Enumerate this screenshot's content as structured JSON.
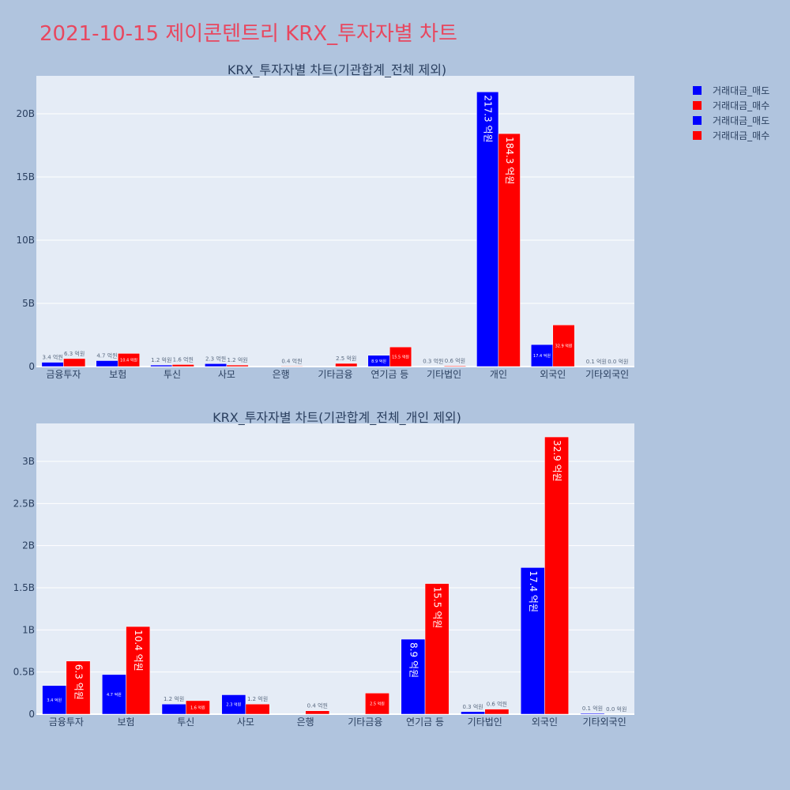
{
  "page": {
    "title": "2021-10-15 제이콘텐트리 KRX_투자자별 차트"
  },
  "colors": {
    "background": "#b0c4de",
    "plot_bg": "#e5ecf6",
    "sell": "#0000ff",
    "buy": "#ff0000",
    "title": "#e8475f",
    "text": "#2a3f5f"
  },
  "legend": [
    "거래대금_매도",
    "거래대금_매수",
    "거래대금_매도",
    "거래대금_매수"
  ],
  "chart_data": [
    {
      "type": "bar",
      "title": "KRX_투자자별 차트(기관합계_전체 제외)",
      "categories": [
        "금융투자",
        "보험",
        "투신",
        "사모",
        "은행",
        "기타금융",
        "연기금 등",
        "기타법인",
        "개인",
        "외국인",
        "기타외국인"
      ],
      "series": [
        {
          "name": "거래대금_매도",
          "values": [
            0.34,
            0.47,
            0.12,
            0.23,
            0,
            0,
            0.89,
            0.03,
            21.73,
            1.74,
            0.01
          ],
          "labels": [
            "3.4 억원",
            "4.7 억원",
            "1.2 억원",
            "2.3 억원",
            "",
            "",
            "8.9 억원",
            "0.3 억원",
            "217.3 억원",
            "17.4 억원",
            "0.1 억원"
          ]
        },
        {
          "name": "거래대금_매수",
          "values": [
            0.63,
            1.04,
            0.16,
            0.12,
            0.04,
            0.25,
            1.55,
            0.06,
            18.43,
            3.29,
            0.0
          ],
          "labels": [
            "6.3 억원",
            "10.4 억원",
            "1.6 억원",
            "1.2 억원",
            "0.4 억원",
            "2.5 억원",
            "15.5 억원",
            "0.6 억원",
            "184.3 억원",
            "32.9 억원",
            "0.0 억원"
          ]
        }
      ],
      "ylim": [
        0,
        23
      ],
      "yticks": [
        0,
        5,
        10,
        15,
        20
      ],
      "ytick_labels": [
        "0",
        "5B",
        "10B",
        "15B",
        "20B"
      ],
      "unit_scale": "B"
    },
    {
      "type": "bar",
      "title": "KRX_투자자별 차트(기관합계_전체_개인 제외)",
      "categories": [
        "금융투자",
        "보험",
        "투신",
        "사모",
        "은행",
        "기타금융",
        "연기금 등",
        "기타법인",
        "외국인",
        "기타외국인"
      ],
      "series": [
        {
          "name": "거래대금_매도",
          "values": [
            0.34,
            0.47,
            0.12,
            0.23,
            0,
            0,
            0.89,
            0.03,
            1.74,
            0.01
          ],
          "labels": [
            "3.4 억원",
            "4.7 억원",
            "1.2 억원",
            "2.3 억원",
            "",
            "",
            "8.9 억원",
            "0.3 억원",
            "17.4 억원",
            "0.1 억원"
          ]
        },
        {
          "name": "거래대금_매수",
          "values": [
            0.63,
            1.04,
            0.16,
            0.12,
            0.04,
            0.25,
            1.55,
            0.06,
            3.29,
            0.0
          ],
          "labels": [
            "6.3 억원",
            "10.4 억원",
            "1.6 억원",
            "1.2 억원",
            "0.4 억원",
            "2.5 억원",
            "15.5 억원",
            "0.6 억원",
            "32.9 억원",
            "0.0 억원"
          ]
        }
      ],
      "ylim": [
        0,
        3.45
      ],
      "yticks": [
        0,
        0.5,
        1,
        1.5,
        2,
        2.5,
        3
      ],
      "ytick_labels": [
        "0",
        "0.5B",
        "1B",
        "1.5B",
        "2B",
        "2.5B",
        "3B"
      ],
      "unit_scale": "B"
    }
  ]
}
